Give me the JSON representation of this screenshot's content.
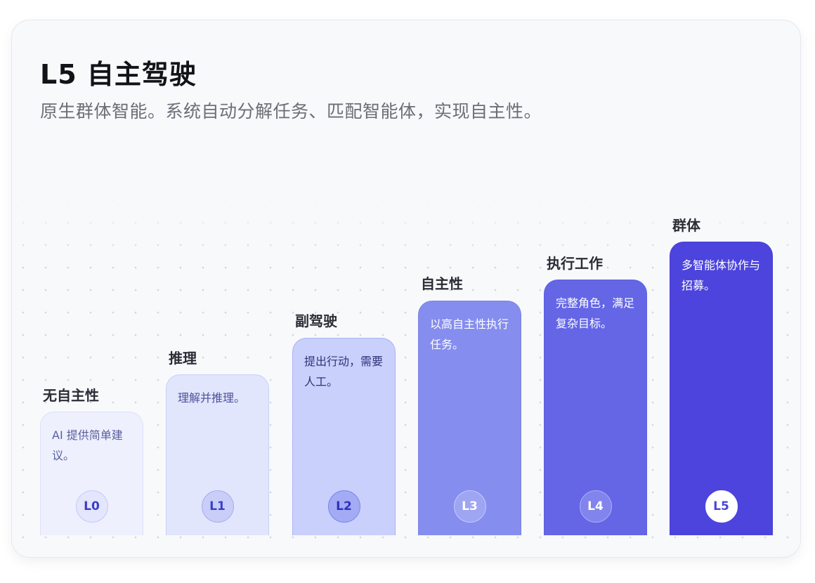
{
  "title": "L5 自主驾驶",
  "subtitle": "原生群体智能。系统自动分解任务、匹配智能体，实现自主性。",
  "levels": [
    {
      "code": "L0",
      "label": "无自主性",
      "desc": "AI 提供简单建议。"
    },
    {
      "code": "L1",
      "label": "推理",
      "desc": "理解并推理。"
    },
    {
      "code": "L2",
      "label": "副驾驶",
      "desc": "提出行动，需要人工。"
    },
    {
      "code": "L3",
      "label": "自主性",
      "desc": "以高自主性执行任务。"
    },
    {
      "code": "L4",
      "label": "执行工作",
      "desc": "完整角色，满足复杂目标。"
    },
    {
      "code": "L5",
      "label": "群体",
      "desc": "多智能体协作与招募。"
    }
  ],
  "colors": {
    "L0": "#eef0fd",
    "L1": "#e2e6fc",
    "L2": "#c9d0fb",
    "L3": "#858def",
    "L4": "#6466e6",
    "L5": "#4c44dc"
  }
}
